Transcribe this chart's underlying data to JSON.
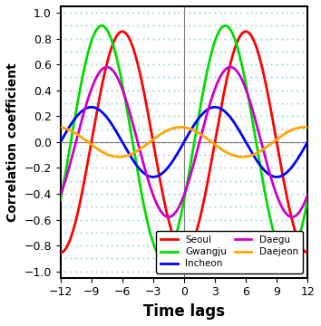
{
  "title": "",
  "xlabel": "Time lags",
  "ylabel": "Correlation coefficient",
  "xlim": [
    -12,
    12
  ],
  "ylim": [
    -1.05,
    1.05
  ],
  "xticks": [
    -12,
    -9,
    -6,
    -3,
    0,
    3,
    6,
    9,
    12
  ],
  "yticks": [
    -1,
    -0.8,
    -0.6,
    -0.4,
    -0.2,
    0,
    0.2,
    0.4,
    0.6,
    0.8,
    1
  ],
  "series": [
    {
      "label": "Seoul",
      "color": "#ff0000",
      "amplitude": 0.855,
      "phase_deg": 180,
      "period": 12
    },
    {
      "label": "Gwangju",
      "color": "#00dd00",
      "amplitude": 0.9,
      "phase_deg": 240,
      "period": 12
    },
    {
      "label": "Incheon",
      "color": "#0000ff",
      "amplitude": 0.27,
      "phase_deg": 270,
      "period": 12
    },
    {
      "label": "Daegu",
      "color": "#cc00cc",
      "amplitude": 0.58,
      "phase_deg": 225,
      "period": 12
    },
    {
      "label": "Daejeon",
      "color": "#ffa500",
      "amplitude": 0.115,
      "phase_deg": 10,
      "period": 12
    }
  ],
  "legend": [
    [
      "Seoul",
      "Gwangju"
    ],
    [
      "Incheon",
      "Daegu"
    ],
    [
      "Daejeon",
      ""
    ]
  ],
  "background_color": "#ffffff",
  "dot_color": "#add8e6",
  "vline_color": "#808080",
  "hline_color": "#808080"
}
